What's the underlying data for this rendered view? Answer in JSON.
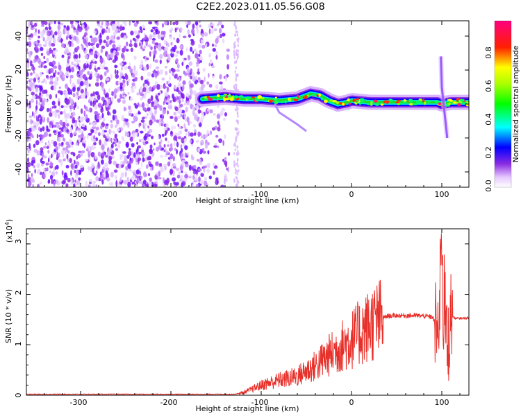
{
  "title": "C2E2.2023.011.05.56.G08",
  "top_panel": {
    "xlabel": "Height of straight line (km)",
    "ylabel": "Frequency (Hz)",
    "x_ticks": [
      "-300",
      "-200",
      "-100",
      "0",
      "100"
    ],
    "y_ticks": [
      "40",
      "20",
      "0",
      "-20",
      "-40"
    ],
    "colorbar_label": "Normalized spectral amplitude",
    "colorbar_ticks": [
      "0.0",
      "0.2",
      "0.4",
      "0.6",
      "0.8"
    ]
  },
  "bottom_panel": {
    "xlabel": "Height of straight line (km)",
    "ylabel": "SNR (10 * v/v)",
    "exponent_label": "(x10",
    "exponent_power": "4",
    "exponent_close": ")",
    "x_ticks": [
      "-300",
      "-200",
      "-100",
      "0",
      "100"
    ],
    "y_ticks": [
      "3",
      "2",
      "1",
      "0"
    ]
  },
  "chart_data": [
    {
      "type": "heatmap",
      "title": "C2E2.2023.011.05.56.G08",
      "xlabel": "Height of straight line (km)",
      "ylabel": "Frequency (Hz)",
      "xlim": [
        -360,
        130
      ],
      "ylim": [
        -49,
        49
      ],
      "colorbar": {
        "label": "Normalized spectral amplitude",
        "range": [
          0,
          1
        ],
        "colormap": "white-violet-blue-cyan-green-yellow-red-magenta"
      },
      "ridge": {
        "x": [
          -165,
          -140,
          -120,
          -100,
          -80,
          -60,
          -45,
          -35,
          -25,
          -15,
          -5,
          0,
          20,
          40,
          60,
          80,
          95,
          100,
          110,
          130
        ],
        "y": [
          3,
          4,
          3,
          3,
          2,
          3,
          6,
          5,
          2,
          0,
          1,
          2,
          1,
          1,
          1,
          1,
          1,
          0,
          1,
          1
        ]
      }
    },
    {
      "type": "line",
      "xlabel": "Height of straight line (km)",
      "ylabel": "SNR (10 * v/v)",
      "y_multiplier": "x10^4",
      "xlim": [
        -360,
        130
      ],
      "ylim": [
        0,
        3.3
      ],
      "color": "#e8302a",
      "series": [
        {
          "x": [
            -360,
            -300,
            -200,
            -130,
            -120,
            -110,
            -100,
            -90,
            -80,
            -70,
            -60,
            -50,
            -40,
            -30,
            -20,
            -10,
            0,
            10,
            20,
            30,
            40,
            50,
            60,
            70,
            80,
            90,
            95,
            100,
            103,
            106,
            110,
            115,
            130
          ],
          "y": [
            0.02,
            0.02,
            0.02,
            0.02,
            0.05,
            0.12,
            0.2,
            0.25,
            0.3,
            0.33,
            0.38,
            0.48,
            0.58,
            0.72,
            0.85,
            0.98,
            1.1,
            1.25,
            1.38,
            1.5,
            1.57,
            1.58,
            1.58,
            1.58,
            1.57,
            1.55,
            1.3,
            1.1,
            2.0,
            0.8,
            1.6,
            1.52,
            1.53
          ]
        }
      ]
    }
  ]
}
